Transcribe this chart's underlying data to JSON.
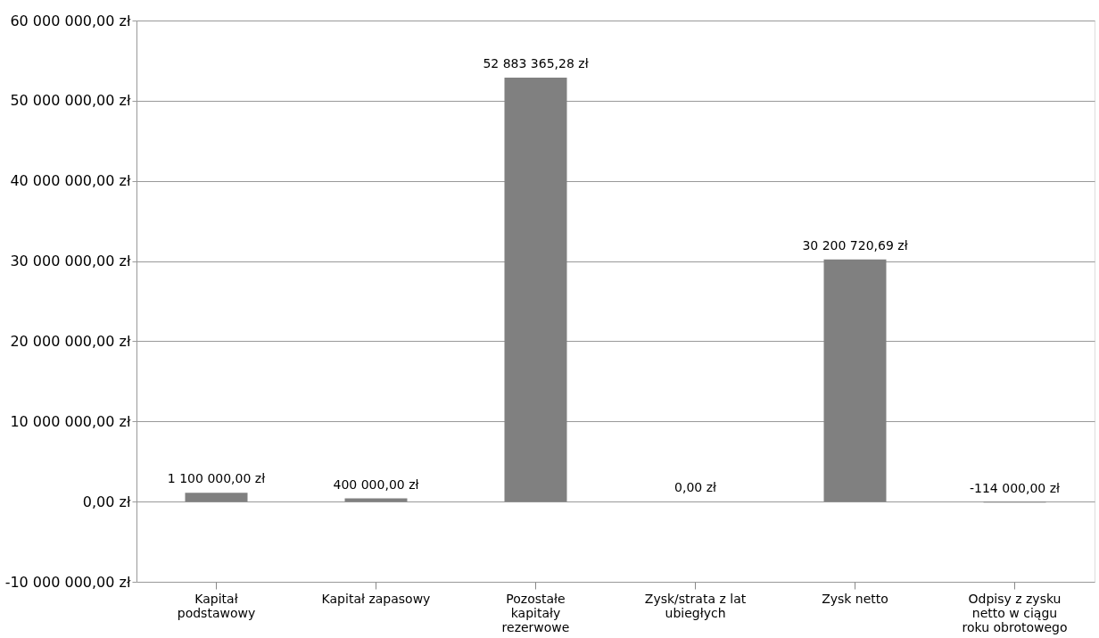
{
  "chart_data": {
    "type": "bar",
    "categories": [
      "Kapitał podstawowy",
      "Kapitał zapasowy",
      "Pozostałe kapitały rezerwowe",
      "Zysk/strata z lat ubiegłych",
      "Zysk netto",
      "Odpisy z zysku netto w ciągu roku obrotowego"
    ],
    "values": [
      1100000.0,
      400000.0,
      52883365.28,
      0.0,
      30200720.69,
      -114000.0
    ],
    "value_labels": [
      "1 100 000,00 zł",
      "400 000,00 zł",
      "52 883 365,28 zł",
      "0,00 zł",
      "30 200 720,69 zł",
      "-114 000,00 zł"
    ],
    "color": "#808080",
    "ylim": [
      -10000000,
      60000000
    ],
    "yticks": [
      {
        "value": -10000000,
        "label": "-10 000 000,00 zł"
      },
      {
        "value": 0,
        "label": "0,00 zł"
      },
      {
        "value": 10000000,
        "label": "10 000 000,00 zł"
      },
      {
        "value": 20000000,
        "label": "20 000 000,00 zł"
      },
      {
        "value": 30000000,
        "label": "30 000 000,00 zł"
      },
      {
        "value": 40000000,
        "label": "40 000 000,00 zł"
      },
      {
        "value": 50000000,
        "label": "50 000 000,00 zł"
      },
      {
        "value": 60000000,
        "label": "60 000 000,00 zł"
      }
    ],
    "grid": "y"
  }
}
